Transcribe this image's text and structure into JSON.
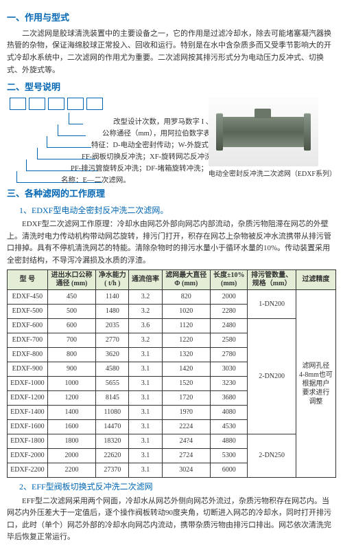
{
  "sec1": {
    "title": "一、作用与型式",
    "p1": "二次滤网是胶球清洗装置中的主要设备之一，它的作用是过滤冷却水，除去可能堵塞凝汽器换热管的杂物，保证海绵胶球正常投入、回收和运行。特别是在水中含杂质多而又受季节影响大的开式冷却水系统中，二次滤网的作用尤为重要。二次滤网按其排污形式分为电动压力反冲式、切换式、外旋式等。"
  },
  "sec2": {
    "title": "二、型号说明",
    "lines": [
      "改型设计次数，用罗马数字 I 、II、III……",
      "公称通径（mm），用阿拉伯数字表示；",
      "特征：D-电动全密封传动；W-外旋式",
      "FF-阀板切换反冲洗；XF-旋转网芯反冲洗；",
      "PF-排污管旋转反冲洗；DF-堵箱旋转冲洗；",
      "名称：E—二次滤网。"
    ],
    "caption": "电动全密封反冲洗二次滤网（EDXF系列）"
  },
  "sec3": {
    "title": "三、各种滤网的工作原理",
    "sub1_title": "1、EDXF型电动全密封反冲洗二次滤网。",
    "sub1_p": "EDXF型二次滤网工作原理：冷却水由网芯外部向网芯内部流动，杂质污物阻滞在网芯的外壁上。清洗时电力传动机构带动网芯旋转，排污门打开，积存在网芯上杂物被反冲水流携带从排污管口排掉。具有不停机清洗网芯的特能。清除杂物时的排污水量小于循环水量的10%。传动装置采用全密封结构，不导泻冷漏损及水质的浮渣。",
    "sub2_title": "2、EFF型阀板切换式反冲洗二次滤网",
    "sub2_p": "EFF型二次滤网采用两个网面，冷却水从网芯外侧向网芯外流过，杂质污物积存在网芯内。当网芯内外压差大于一定值后，逐个操作阀板转动90度夹角，切断进入网芯的冷却水，同时打开排污口，此时（单个）网芯外部的冷却水向网芯内流动，携带杂质污物由排污口排出。网芯依次清洗完毕后恢复正常运行。"
  },
  "table": {
    "headers": [
      "型 号",
      "进出水口公称\n通径 (mm)",
      "净水能力\n( t/h )",
      "通流倍率",
      "滤网最大直径\nΦ  (mm)",
      "长度±10%\n(mm)",
      "排污管数量、\n规格（mm）",
      "过滤精度"
    ],
    "rows": [
      [
        "EDXF-450",
        "450",
        "1140",
        "3.2",
        "820",
        "2000"
      ],
      [
        "EDXF-500",
        "500",
        "1480",
        "3.2",
        "1020",
        "2280"
      ],
      [
        "EDXF-600",
        "600",
        "2035",
        "3.6",
        "1120",
        "2480"
      ],
      [
        "EDXF-700",
        "700",
        "2770",
        "3.2",
        "1220",
        "2580"
      ],
      [
        "EDXF-800",
        "800",
        "3620",
        "3.1",
        "1320",
        "2780"
      ],
      [
        "EDXF-900",
        "900",
        "4580",
        "3.1",
        "1420",
        "3030"
      ],
      [
        "EDXF-1000",
        "1000",
        "5655",
        "3.1",
        "1520",
        "3230"
      ],
      [
        "EDXF-1200",
        "1200",
        "8145",
        "3.1",
        "1720",
        "3680"
      ],
      [
        "EDXF-1400",
        "1400",
        "11080",
        "3.1",
        "19?0",
        "4080"
      ],
      [
        "EDXF-1600",
        "1600",
        "14470",
        "3.1",
        "2224",
        "4530"
      ],
      [
        "EDXF-1800",
        "1800",
        "18320",
        "3.1",
        "24?4",
        "4880"
      ],
      [
        "EDXF-2000",
        "2000",
        "22620",
        "3.1",
        "2724",
        "5300"
      ],
      [
        "EDXF-2200",
        "2200",
        "27370",
        "3.1",
        "3024",
        "6000"
      ]
    ],
    "pipe_top": "1-DN200",
    "pipe_mid": "2-DN200",
    "pipe_bot": "2-DN250",
    "note": "滤网孔径\n4-8mm也可\n根据用户\n要求进行\n调整"
  },
  "colors": {
    "accent": "#0066b3",
    "th_bg": "#e4eed6"
  }
}
